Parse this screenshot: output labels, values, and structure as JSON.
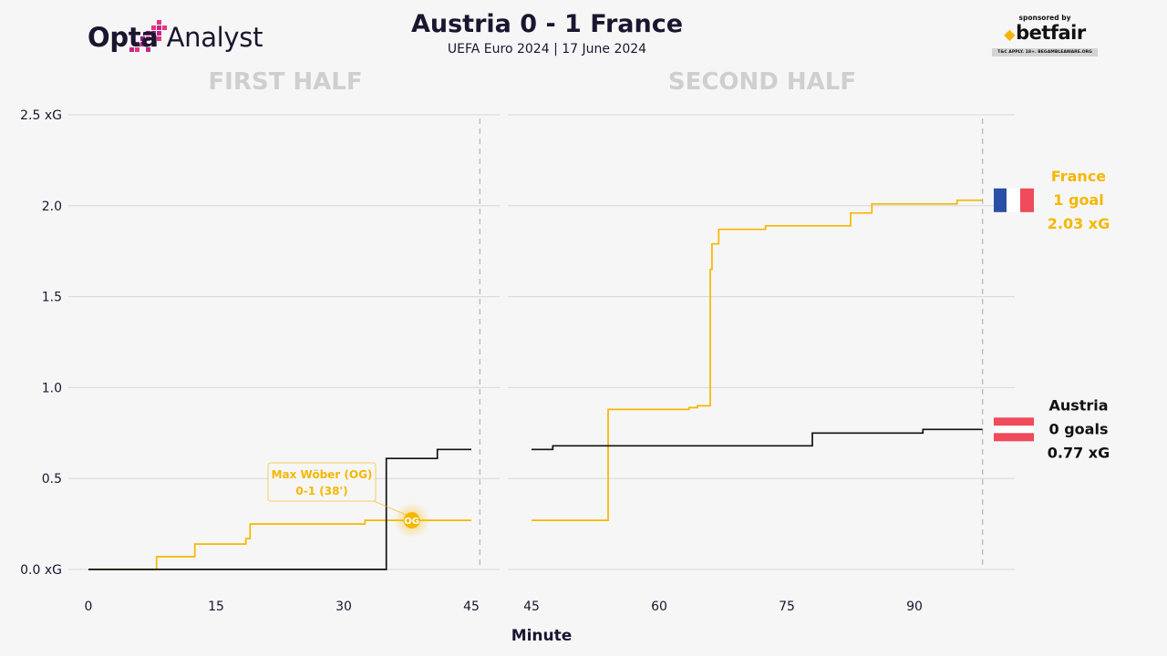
{
  "header": {
    "brand": "Opta Analyst",
    "brand_bold": "Opta",
    "brand_light": " Analyst",
    "title": "Austria 0 - 1 France",
    "subtitle": "UEFA Euro 2024 | 17 June 2024",
    "sponsor_by": "sponsored by",
    "sponsor_name": "betfair",
    "sponsor_disclaimer": "T&C APPLY. 18+. BEGAMBLEAWARE.ORG"
  },
  "colors": {
    "france": "#f5b700",
    "austria": "#111111",
    "flag_blue": "#2b4fa6",
    "flag_red": "#ef4b5a",
    "grid": "#d8d8d8",
    "halftitle": "#cfcfcf"
  },
  "chart_data": {
    "type": "line",
    "subtype": "step",
    "unit": "xG",
    "xlabel": "Minute",
    "ylim": [
      0,
      2.5
    ],
    "yticks": [
      "0.0 xG",
      "0.5",
      "1.0",
      "1.5",
      "2.0",
      "2.5 xG"
    ],
    "ytick_values": [
      0,
      0.5,
      1.0,
      1.5,
      2.0,
      2.5
    ],
    "grid": true,
    "panels": [
      {
        "title": "FIRST HALF",
        "xlim": [
          0,
          46
        ],
        "xticks": [
          0,
          15,
          30,
          45
        ],
        "end_marker": 46
      },
      {
        "title": "SECOND HALF",
        "xlim": [
          45,
          98
        ],
        "xticks": [
          45,
          60,
          75,
          90
        ],
        "end_marker": 98
      }
    ],
    "series": [
      {
        "name": "France",
        "goals_label": "1 goal",
        "xg_label": "2.03 xG",
        "final_xg": 2.03,
        "first_half": [
          [
            0,
            0
          ],
          [
            8,
            0.07
          ],
          [
            12.5,
            0.14
          ],
          [
            18.5,
            0.17
          ],
          [
            19,
            0.25
          ],
          [
            32.5,
            0.27
          ],
          [
            45,
            0.27
          ]
        ],
        "second_half": [
          [
            45,
            0.27
          ],
          [
            54,
            0.88
          ],
          [
            63.5,
            0.89
          ],
          [
            64.5,
            0.9
          ],
          [
            66,
            1.65
          ],
          [
            66.2,
            1.79
          ],
          [
            67,
            1.87
          ],
          [
            72.5,
            1.89
          ],
          [
            82.5,
            1.96
          ],
          [
            85,
            2.01
          ],
          [
            95,
            2.03
          ],
          [
            98,
            2.03
          ]
        ]
      },
      {
        "name": "Austria",
        "goals_label": "0 goals",
        "xg_label": "0.77 xG",
        "final_xg": 0.77,
        "first_half": [
          [
            0,
            0
          ],
          [
            35,
            0.61
          ],
          [
            41,
            0.66
          ],
          [
            45,
            0.66
          ]
        ],
        "second_half": [
          [
            45,
            0.66
          ],
          [
            47.5,
            0.68
          ],
          [
            78,
            0.75
          ],
          [
            91,
            0.77
          ],
          [
            98,
            0.77
          ]
        ]
      }
    ],
    "annotations": [
      {
        "panel": 0,
        "minute": 38,
        "xg": 0.27,
        "marker": "OG",
        "line1": "Max Wöber (OG)",
        "line2": "0-1 (38')"
      }
    ]
  }
}
